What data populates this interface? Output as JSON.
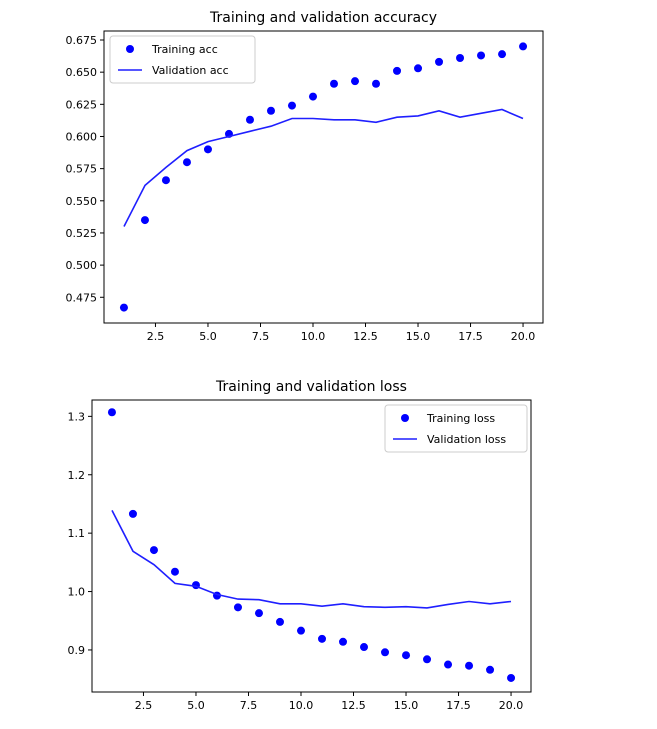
{
  "chart_data": [
    {
      "type": "line",
      "title": "Training and validation accuracy",
      "xlabel": "",
      "ylabel": "",
      "xlim": [
        0.05,
        20.95
      ],
      "ylim": [
        0.455,
        0.682
      ],
      "xticks": [
        2.5,
        5.0,
        7.5,
        10.0,
        12.5,
        15.0,
        17.5,
        20.0
      ],
      "xtick_labels": [
        "2.5",
        "5.0",
        "7.5",
        "10.0",
        "12.5",
        "15.0",
        "17.5",
        "20.0"
      ],
      "yticks": [
        0.475,
        0.5,
        0.525,
        0.55,
        0.575,
        0.6,
        0.625,
        0.65,
        0.675
      ],
      "ytick_labels": [
        "0.475",
        "0.500",
        "0.525",
        "0.550",
        "0.575",
        "0.600",
        "0.625",
        "0.650",
        "0.675"
      ],
      "grid": false,
      "legend_position": "top-left",
      "series": [
        {
          "name": "Training acc",
          "style": "dots",
          "color": "#0000ff",
          "x": [
            1,
            2,
            3,
            4,
            5,
            6,
            7,
            8,
            9,
            10,
            11,
            12,
            13,
            14,
            15,
            16,
            17,
            18,
            19,
            20
          ],
          "y": [
            0.467,
            0.535,
            0.566,
            0.58,
            0.59,
            0.602,
            0.613,
            0.62,
            0.624,
            0.631,
            0.641,
            0.643,
            0.641,
            0.651,
            0.653,
            0.658,
            0.661,
            0.663,
            0.664,
            0.67
          ]
        },
        {
          "name": "Validation acc",
          "style": "line",
          "color": "#1f1fff",
          "x": [
            1,
            2,
            3,
            4,
            5,
            6,
            7,
            8,
            9,
            10,
            11,
            12,
            13,
            14,
            15,
            16,
            17,
            18,
            19,
            20
          ],
          "y": [
            0.53,
            0.562,
            0.576,
            0.589,
            0.596,
            0.6,
            0.604,
            0.608,
            0.614,
            0.614,
            0.613,
            0.613,
            0.611,
            0.615,
            0.616,
            0.62,
            0.615,
            0.618,
            0.621,
            0.614
          ]
        }
      ]
    },
    {
      "type": "line",
      "title": "Training and validation loss",
      "xlabel": "",
      "ylabel": "",
      "xlim": [
        0.05,
        20.95
      ],
      "ylim": [
        0.828,
        1.328
      ],
      "xticks": [
        2.5,
        5.0,
        7.5,
        10.0,
        12.5,
        15.0,
        17.5,
        20.0
      ],
      "xtick_labels": [
        "2.5",
        "5.0",
        "7.5",
        "10.0",
        "12.5",
        "15.0",
        "17.5",
        "20.0"
      ],
      "yticks": [
        0.9,
        1.0,
        1.1,
        1.2,
        1.3
      ],
      "ytick_labels": [
        "0.9",
        "1.0",
        "1.1",
        "1.2",
        "1.3"
      ],
      "grid": false,
      "legend_position": "top-right",
      "series": [
        {
          "name": "Training loss",
          "style": "dots",
          "color": "#0000ff",
          "x": [
            1,
            2,
            3,
            4,
            5,
            6,
            7,
            8,
            9,
            10,
            11,
            12,
            13,
            14,
            15,
            16,
            17,
            18,
            19,
            20
          ],
          "y": [
            1.307,
            1.133,
            1.071,
            1.034,
            1.011,
            0.993,
            0.973,
            0.963,
            0.948,
            0.933,
            0.919,
            0.914,
            0.905,
            0.896,
            0.891,
            0.884,
            0.875,
            0.873,
            0.866,
            0.852
          ]
        },
        {
          "name": "Validation loss",
          "style": "line",
          "color": "#1f1fff",
          "x": [
            1,
            2,
            3,
            4,
            5,
            6,
            7,
            8,
            9,
            10,
            11,
            12,
            13,
            14,
            15,
            16,
            17,
            18,
            19,
            20
          ],
          "y": [
            1.139,
            1.069,
            1.046,
            1.014,
            1.009,
            0.995,
            0.987,
            0.986,
            0.979,
            0.979,
            0.975,
            0.979,
            0.974,
            0.973,
            0.974,
            0.972,
            0.978,
            0.983,
            0.979,
            0.983
          ]
        }
      ]
    }
  ]
}
